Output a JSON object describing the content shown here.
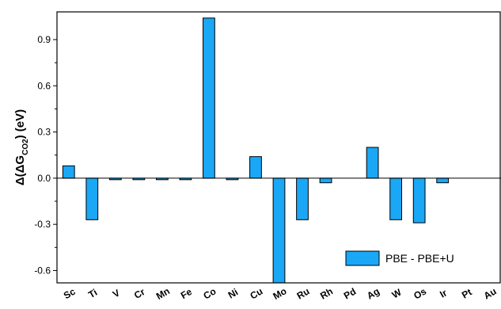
{
  "chart_data": {
    "type": "bar",
    "categories": [
      "Sc",
      "Ti",
      "V",
      "Cr",
      "Mn",
      "Fe",
      "Co",
      "Ni",
      "Cu",
      "Mo",
      "Ru",
      "Rh",
      "Pd",
      "Ag",
      "W",
      "Os",
      "Ir",
      "Pt",
      "Au"
    ],
    "series": [
      {
        "name": "PBE - PBE+U",
        "values": [
          0.08,
          -0.27,
          -0.01,
          -0.01,
          -0.01,
          -0.01,
          1.04,
          -0.01,
          0.14,
          -0.68,
          -0.27,
          -0.03,
          0.0,
          0.2,
          -0.27,
          -0.29,
          -0.03,
          0.0,
          0.0
        ],
        "color": "#1aa7f5"
      }
    ],
    "yticks": [
      -0.6,
      -0.3,
      0.0,
      0.3,
      0.6,
      0.9
    ],
    "ytick_labels": [
      "-0.6",
      "-0.3",
      "0.0",
      "0.3",
      "0.6",
      "0.9"
    ],
    "ylim": [
      -0.68,
      1.08
    ],
    "ylabel": {
      "prefix": "Δ(ΔG",
      "subscript": "CO2",
      "suffix": ") (eV)"
    },
    "xlabel": "",
    "grid": false,
    "legend_position": "bottom-right"
  }
}
